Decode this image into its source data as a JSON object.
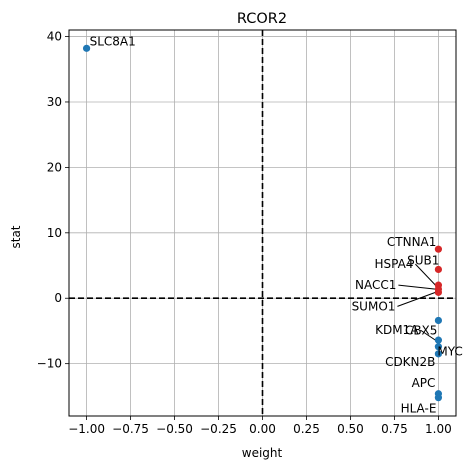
{
  "chart_data": {
    "type": "scatter",
    "title": "RCOR2",
    "xlabel": "weight",
    "ylabel": "stat",
    "xlim": [
      -1.1,
      1.1
    ],
    "ylim": [
      -18,
      41
    ],
    "xticks": [
      -1.0,
      -0.75,
      -0.5,
      -0.25,
      0.0,
      0.25,
      0.5,
      0.75,
      1.0
    ],
    "xtick_labels": [
      "−1.00",
      "−0.75",
      "−0.50",
      "−0.25",
      "0.00",
      "0.25",
      "0.50",
      "0.75",
      "1.00"
    ],
    "yticks": [
      -10,
      0,
      10,
      20,
      30,
      40
    ],
    "ytick_labels": [
      "−10",
      "0",
      "10",
      "20",
      "30",
      "40"
    ],
    "grid": true,
    "reference_lines": {
      "x": 0,
      "y": 0,
      "style": "dashed"
    },
    "colors": {
      "positive": "#d62728",
      "negative": "#1f77b4"
    },
    "points": [
      {
        "label": "SLC8A1",
        "x": -1.0,
        "y": 38.2,
        "sign": "negative"
      },
      {
        "label": "CTNNA1",
        "x": 1.0,
        "y": 7.5,
        "sign": "positive"
      },
      {
        "label": "SUB1",
        "x": 1.0,
        "y": 4.4,
        "sign": "positive"
      },
      {
        "label": "HSPA4",
        "x": 1.0,
        "y": 2.0,
        "sign": "positive"
      },
      {
        "label": "NACC1",
        "x": 1.0,
        "y": 1.4,
        "sign": "positive"
      },
      {
        "label": "SUMO1",
        "x": 1.0,
        "y": 0.9,
        "sign": "positive"
      },
      {
        "label": "CBX5",
        "x": 1.0,
        "y": -3.4,
        "sign": "negative"
      },
      {
        "label": "KDM1A",
        "x": 1.0,
        "y": -6.4,
        "sign": "negative"
      },
      {
        "label": "MYC",
        "x": 1.0,
        "y": -7.4,
        "sign": "negative"
      },
      {
        "label": "CDKN2B",
        "x": 1.0,
        "y": -8.5,
        "sign": "negative"
      },
      {
        "label": "APC",
        "x": 1.0,
        "y": -14.6,
        "sign": "negative"
      },
      {
        "label": "HLA-E",
        "x": 1.0,
        "y": -15.2,
        "sign": "negative"
      }
    ]
  }
}
